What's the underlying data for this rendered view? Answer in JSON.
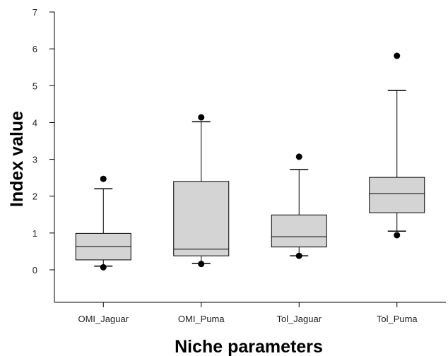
{
  "chart_data": {
    "type": "box",
    "xlabel": "Niche parameters",
    "ylabel": "Index value",
    "ylim": [
      -0.9,
      7
    ],
    "yticks": [
      "0",
      "1",
      "2",
      "3",
      "4",
      "5",
      "6",
      "7"
    ],
    "grid": false,
    "categories": [
      "OMI_Jaguar",
      "OMI_Puma",
      "Tol_Jaguar",
      "Tol_Puma"
    ],
    "boxes": [
      {
        "category": "OMI_Jaguar",
        "whisker_low": 0.1,
        "q1": 0.27,
        "median": 0.63,
        "q3": 0.99,
        "whisker_high": 2.2,
        "outliers": [
          0.07,
          2.47
        ]
      },
      {
        "category": "OMI_Puma",
        "whisker_low": 0.17,
        "q1": 0.38,
        "median": 0.56,
        "q3": 2.4,
        "whisker_high": 4.02,
        "outliers": [
          0.16,
          4.14
        ]
      },
      {
        "category": "Tol_Jaguar",
        "whisker_low": 0.38,
        "q1": 0.62,
        "median": 0.9,
        "q3": 1.49,
        "whisker_high": 2.72,
        "outliers": [
          0.38,
          3.07
        ]
      },
      {
        "category": "Tol_Puma",
        "whisker_low": 1.05,
        "q1": 1.55,
        "median": 2.07,
        "q3": 2.51,
        "whisker_high": 4.87,
        "outliers": [
          0.94,
          5.81
        ]
      }
    ],
    "colors": {
      "box_fill": "#d4d4d4",
      "stroke": "#000000",
      "outlier": "#000000"
    }
  }
}
